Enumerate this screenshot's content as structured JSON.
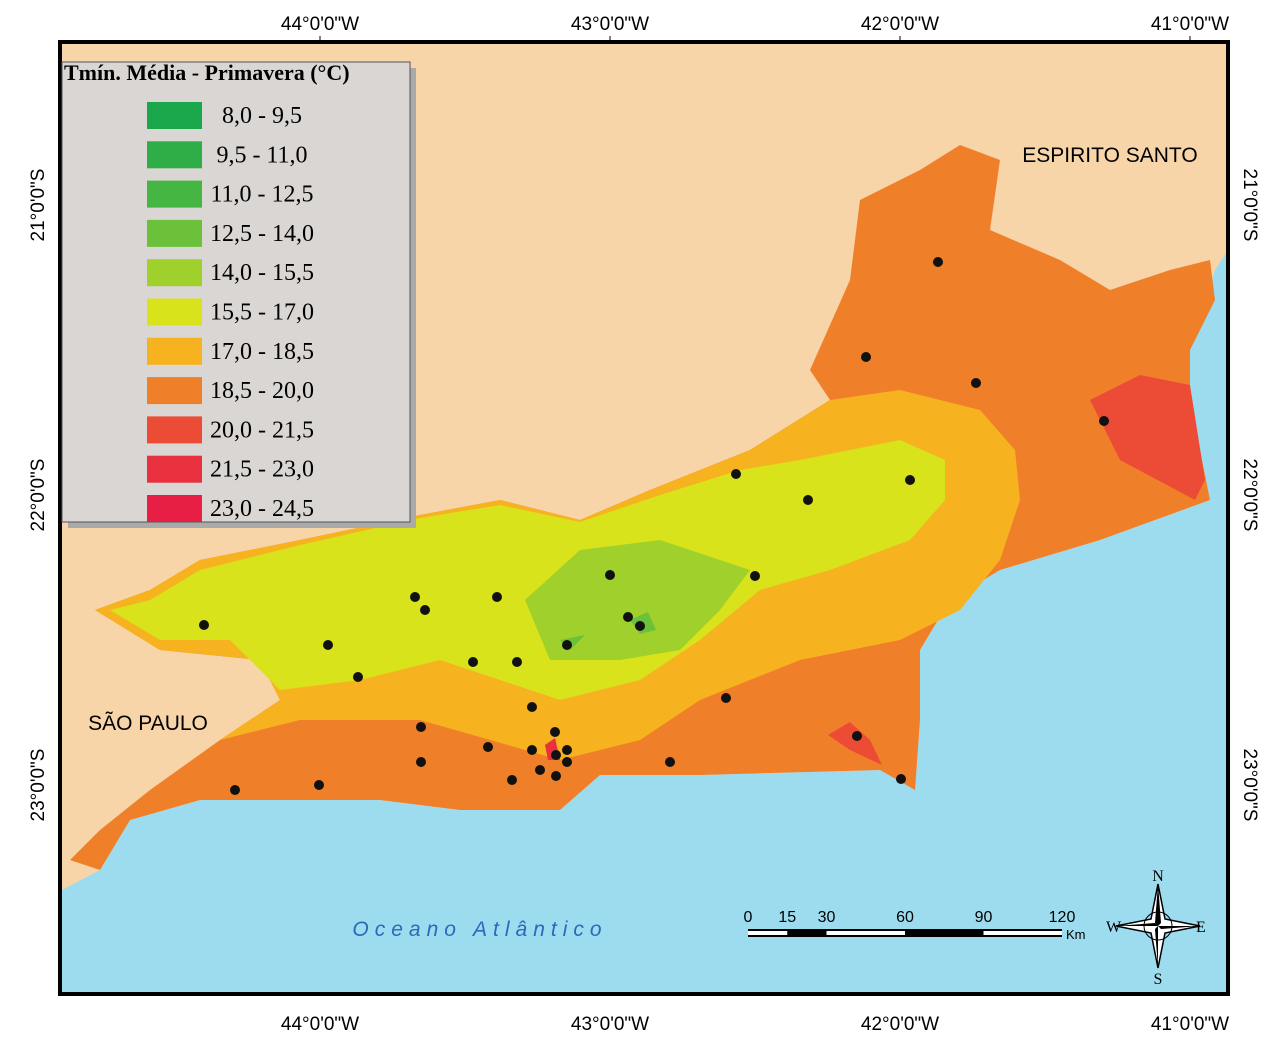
{
  "map": {
    "legend": {
      "title": "Tmín. Média - Primavera (°C)",
      "items": [
        {
          "label": "8,0 - 9,5",
          "color": "#1aa64a"
        },
        {
          "label": "9,5 - 11,0",
          "color": "#2fae47"
        },
        {
          "label": "11,0 - 12,5",
          "color": "#45b641"
        },
        {
          "label": "12,5 - 14,0",
          "color": "#6cc13a"
        },
        {
          "label": "14,0 - 15,5",
          "color": "#a0d02b"
        },
        {
          "label": "15,5 - 17,0",
          "color": "#d9e31b"
        },
        {
          "label": "17,0 - 18,5",
          "color": "#f7b21f"
        },
        {
          "label": "18,5 - 20,0",
          "color": "#f07f2a"
        },
        {
          "label": "20,0 - 21,5",
          "color": "#ec4b36"
        },
        {
          "label": "21,5 - 23,0",
          "color": "#e8303e"
        },
        {
          "label": "23,0 - 24,5",
          "color": "#e81f44"
        }
      ]
    },
    "lon_labels": [
      "44°0'0\"W",
      "43°0'0\"W",
      "42°0'0\"W",
      "41°0'0\"W"
    ],
    "lat_labels": [
      "21°0'0\"S",
      "22°0'0\"S",
      "23°0'0\"S"
    ],
    "places": {
      "north": "ESPIRITO SANTO",
      "west": "SÃO PAULO",
      "ocean": "Oceano Atlântico"
    },
    "scale_bar": {
      "ticks": [
        0,
        15,
        30,
        60,
        90,
        120
      ],
      "unit": "Km"
    },
    "compass": {
      "n": "N",
      "s": "S",
      "e": "E",
      "w": "W"
    }
  }
}
